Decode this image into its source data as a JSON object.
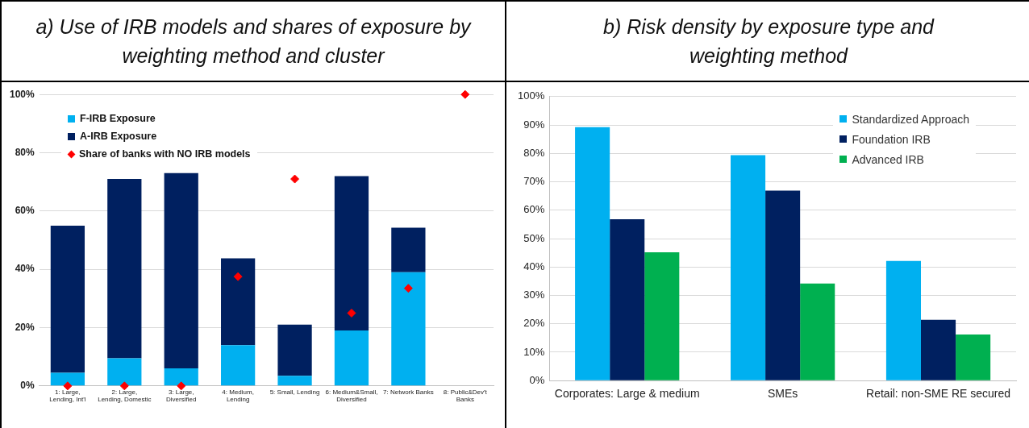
{
  "chart_data": [
    {
      "type": "bar",
      "title": "a) Use of IRB models and shares of exposure by weighting method and cluster",
      "categories": [
        "1: Large, Lending, Int'l",
        "2: Large, Lending, Domestic",
        "3: Large, Diversified",
        "4: Medium, Lending",
        "5: Small, Lending",
        "6: Medium&Small, Diversified",
        "7: Network Banks",
        "8: Public&Dev't Banks"
      ],
      "stacked": true,
      "series": [
        {
          "name": "F-IRB Exposure",
          "color": "#00b0f0",
          "values": [
            4.5,
            9.5,
            6,
            14,
            3.5,
            19,
            39,
            0
          ]
        },
        {
          "name": "A-IRB Exposure",
          "color": "#002060",
          "values": [
            50.5,
            61.5,
            67,
            29.8,
            17.5,
            53,
            15.3,
            0
          ]
        },
        {
          "name": "Share of banks with NO IRB models",
          "type": "scatter",
          "color": "#ff0000",
          "values": [
            0,
            0,
            0,
            37.5,
            71,
            25,
            33.5,
            100
          ]
        }
      ],
      "marker": "diamond",
      "ylim": [
        0,
        100
      ],
      "yticks": [
        {
          "value": 0,
          "label": "0%"
        },
        {
          "value": 20,
          "label": "20%"
        },
        {
          "value": 40,
          "label": "40%"
        },
        {
          "value": 60,
          "label": "60%"
        },
        {
          "value": 80,
          "label": "80%"
        },
        {
          "value": 100,
          "label": "100%"
        }
      ],
      "grid": "y",
      "legend": "top left"
    },
    {
      "type": "bar",
      "title": "b) Risk density by exposure type and weighting method",
      "categories": [
        "Corporates: Large & medium",
        "SMEs",
        "Retail: non-SME RE secured"
      ],
      "series": [
        {
          "name": "Standardized Approach",
          "color": "#00b0f0",
          "values": [
            89.2,
            79.4,
            42.1
          ]
        },
        {
          "name": "Foundation IRB",
          "color": "#002060",
          "values": [
            56.8,
            66.9,
            21.4
          ]
        },
        {
          "name": "Advanced IRB",
          "color": "#00b050",
          "values": [
            45.2,
            34.2,
            16.2
          ]
        }
      ],
      "ylim": [
        0,
        100
      ],
      "yticks": [
        {
          "value": 0,
          "label": "0%"
        },
        {
          "value": 10,
          "label": "10%"
        },
        {
          "value": 20,
          "label": "20%"
        },
        {
          "value": 30,
          "label": "30%"
        },
        {
          "value": 40,
          "label": "40%"
        },
        {
          "value": 50,
          "label": "50%"
        },
        {
          "value": 60,
          "label": "60%"
        },
        {
          "value": 70,
          "label": "70%"
        },
        {
          "value": 80,
          "label": "80%"
        },
        {
          "value": 90,
          "label": "90%"
        },
        {
          "value": 100,
          "label": "100%"
        }
      ],
      "grid": "y",
      "legend": "top right"
    }
  ]
}
